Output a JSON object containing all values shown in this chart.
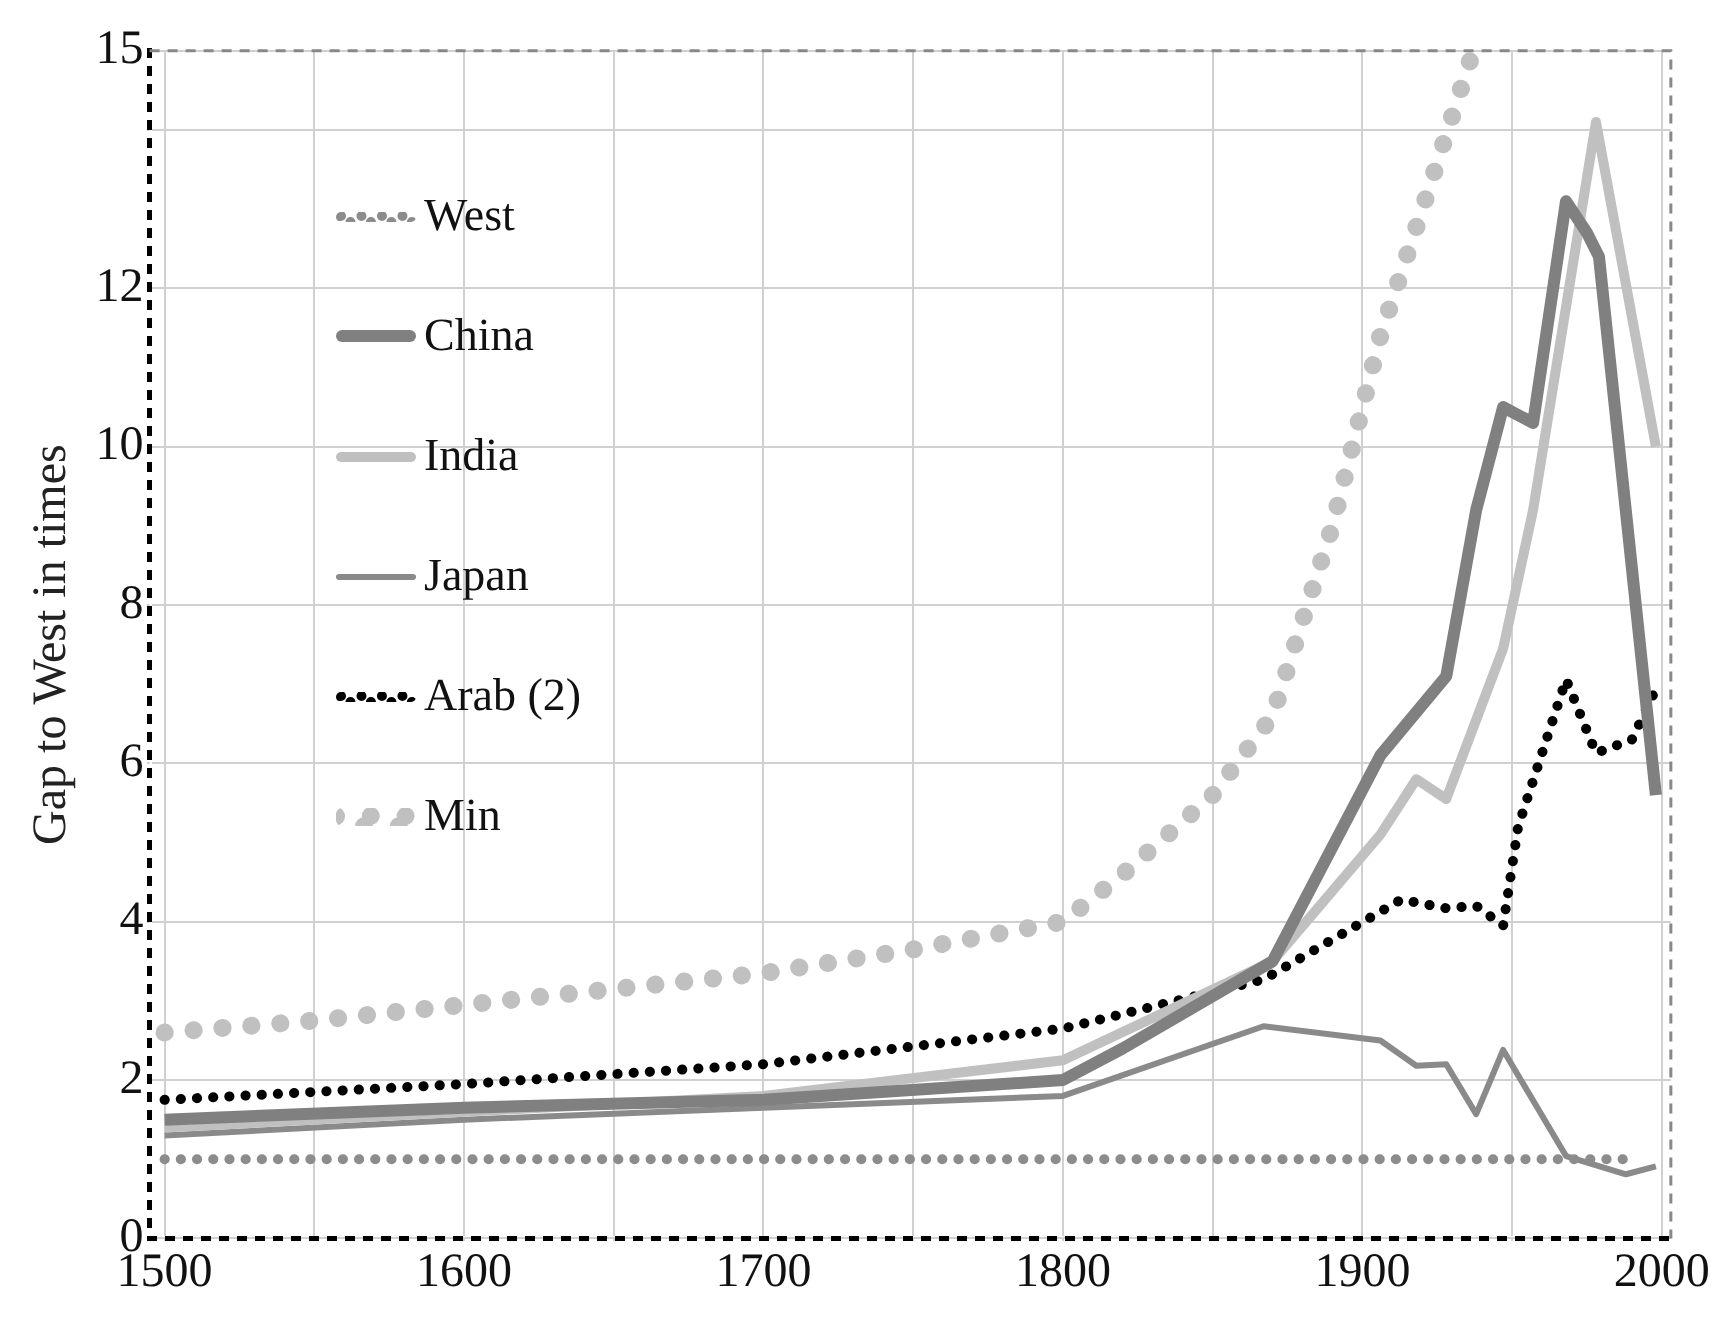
{
  "chart_data": {
    "type": "line",
    "ylabel": "Gap to West in times",
    "xlim": [
      1495,
      2003
    ],
    "ylim": [
      0,
      15
    ],
    "xticks": [
      1500,
      {
        "value": 1550,
        "label": null
      },
      1600,
      {
        "value": 1650,
        "label": null
      },
      1700,
      {
        "value": 1750,
        "label": null
      },
      1800,
      {
        "value": 1850,
        "label": null
      },
      1900,
      {
        "value": 1950,
        "label": null
      },
      2000
    ],
    "yticks": [
      0,
      2,
      4,
      6,
      8,
      10,
      12,
      {
        "value": 14,
        "label": null
      },
      15
    ],
    "grid": true,
    "legend": "top left",
    "marker": "none",
    "series": [
      {
        "name": "West",
        "color": "#8c8c8c",
        "line_style": "dotted",
        "x": [
          1500,
          1600,
          1700,
          1800,
          1900,
          1950,
          1990
        ],
        "values": [
          1,
          1,
          1,
          1,
          1,
          1,
          1
        ]
      },
      {
        "name": "China",
        "color": "#808080",
        "line_style": "solid",
        "x": [
          1500,
          1600,
          1700,
          1800,
          1820,
          1870,
          1906,
          1928,
          1938,
          1947,
          1957,
          1968,
          1975,
          1979,
          1998
        ],
        "values": [
          1.5,
          1.65,
          1.75,
          2.0,
          2.4,
          3.5,
          6.1,
          7.1,
          9.2,
          10.5,
          10.3,
          13.1,
          12.7,
          12.4,
          5.6
        ]
      },
      {
        "name": "India",
        "color": "#c0c0c0",
        "line_style": "solid",
        "x": [
          1500,
          1600,
          1700,
          1800,
          1870,
          1906,
          1918,
          1928,
          1947,
          1957,
          1978,
          1998
        ],
        "values": [
          1.4,
          1.6,
          1.8,
          2.25,
          3.5,
          5.1,
          5.8,
          5.55,
          7.45,
          9.2,
          14.1,
          10.0
        ]
      },
      {
        "name": "Japan",
        "color": "#8a8a8a",
        "line_style": "solid",
        "x": [
          1500,
          1600,
          1700,
          1800,
          1867,
          1906,
          1918,
          1928,
          1938,
          1947,
          1968,
          1988,
          1998
        ],
        "values": [
          1.3,
          1.5,
          1.65,
          1.8,
          2.68,
          2.5,
          2.18,
          2.2,
          1.57,
          2.38,
          1.04,
          0.81,
          0.91
        ]
      },
      {
        "name": "Arab (2)",
        "color": "#000000",
        "line_style": "dotted",
        "x": [
          1500,
          1600,
          1700,
          1800,
          1867,
          1913,
          1928,
          1938,
          1947,
          1952,
          1968,
          1978,
          1990,
          1997
        ],
        "values": [
          1.75,
          1.95,
          2.2,
          2.65,
          3.27,
          4.28,
          4.17,
          4.2,
          3.95,
          5.2,
          7.06,
          6.13,
          6.3,
          6.86
        ]
      },
      {
        "name": "Min",
        "color": "#c0c0c0",
        "line_style": "dotted",
        "x": [
          1500,
          1550,
          1600,
          1650,
          1700,
          1750,
          1800,
          1820,
          1850,
          1870,
          1890,
          1906,
          1920,
          1937
        ],
        "values": [
          2.6,
          2.75,
          2.95,
          3.15,
          3.35,
          3.65,
          4.0,
          4.6,
          5.6,
          6.6,
          9.0,
          11.4,
          13.0,
          15
        ]
      }
    ]
  }
}
